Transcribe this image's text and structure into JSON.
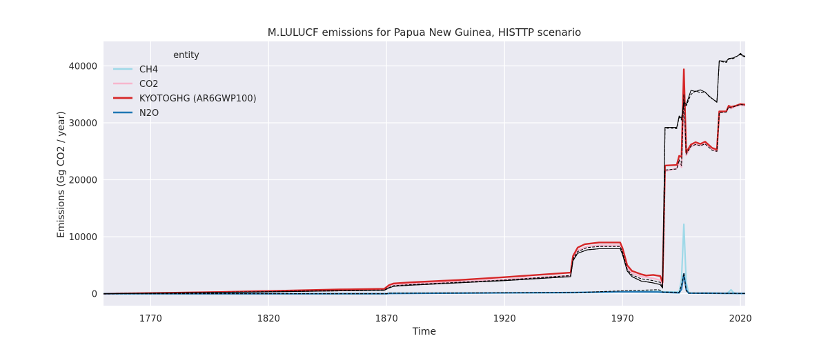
{
  "chart_data": {
    "type": "line",
    "title": "M.LULUCF emissions for Papua New Guinea, HISTTP scenario",
    "xlabel": "Time",
    "ylabel": "Emissions (Gg CO2 / year)",
    "xlim": [
      1750,
      2022
    ],
    "ylim": [
      -2100,
      44300
    ],
    "xticks": [
      1770,
      1820,
      1870,
      1920,
      1970,
      2020
    ],
    "yticks": [
      0,
      10000,
      20000,
      30000,
      40000
    ],
    "grid": true,
    "background": "#eaeaf2",
    "legend": {
      "title": "entity",
      "placement": "top-left"
    },
    "series": [
      {
        "name": "CH4",
        "color": "#9ed9e8",
        "width": 2.2,
        "points": [
          [
            1750,
            0
          ],
          [
            1870,
            0
          ],
          [
            1871,
            100
          ],
          [
            1900,
            120
          ],
          [
            1950,
            200
          ],
          [
            1985,
            450
          ],
          [
            1986,
            500
          ],
          [
            1987,
            350
          ],
          [
            1994,
            320
          ],
          [
            1995,
            2500
          ],
          [
            1996,
            12200
          ],
          [
            1997,
            2000
          ],
          [
            1998,
            150
          ],
          [
            2000,
            100
          ],
          [
            2010,
            100
          ],
          [
            2014,
            50
          ],
          [
            2015,
            300
          ],
          [
            2016,
            700
          ],
          [
            2017,
            200
          ],
          [
            2018,
            50
          ],
          [
            2022,
            50
          ]
        ]
      },
      {
        "name": "CO2",
        "color": "#f7b6cd",
        "width": 2.2,
        "points": [
          [
            1750,
            0
          ],
          [
            1800,
            300
          ],
          [
            1850,
            600
          ],
          [
            1869,
            750
          ],
          [
            1871,
            1300
          ],
          [
            1872,
            1600
          ],
          [
            1880,
            1750
          ],
          [
            1900,
            2100
          ],
          [
            1920,
            2500
          ],
          [
            1948,
            3200
          ],
          [
            1949,
            6200
          ],
          [
            1951,
            7600
          ],
          [
            1955,
            8300
          ],
          [
            1960,
            8500
          ],
          [
            1969,
            8500
          ],
          [
            1970,
            7600
          ],
          [
            1972,
            4600
          ],
          [
            1974,
            3600
          ],
          [
            1978,
            3000
          ],
          [
            1980,
            2900
          ],
          [
            1983,
            2700
          ],
          [
            1986,
            2400
          ],
          [
            1987,
            1500
          ],
          [
            1988,
            21500
          ],
          [
            1993,
            22000
          ],
          [
            1994,
            23000
          ],
          [
            1995,
            22200
          ],
          [
            1996,
            34000
          ],
          [
            1997,
            24300
          ],
          [
            1999,
            25800
          ],
          [
            2001,
            26200
          ],
          [
            2003,
            26000
          ],
          [
            2005,
            26300
          ],
          [
            2008,
            25300
          ],
          [
            2010,
            25000
          ],
          [
            2011,
            31800
          ],
          [
            2014,
            32000
          ],
          [
            2015,
            32700
          ],
          [
            2016,
            32500
          ],
          [
            2018,
            32900
          ],
          [
            2020,
            33100
          ],
          [
            2022,
            33000
          ]
        ]
      },
      {
        "name": "KYOTOGHG (AR6GWP100)",
        "color": "#d62728",
        "width": 2.4,
        "points": [
          [
            1750,
            0
          ],
          [
            1800,
            300
          ],
          [
            1850,
            750
          ],
          [
            1869,
            850
          ],
          [
            1871,
            1500
          ],
          [
            1873,
            1800
          ],
          [
            1880,
            2000
          ],
          [
            1900,
            2400
          ],
          [
            1920,
            2900
          ],
          [
            1948,
            3700
          ],
          [
            1949,
            6600
          ],
          [
            1951,
            8100
          ],
          [
            1954,
            8700
          ],
          [
            1960,
            9000
          ],
          [
            1969,
            9000
          ],
          [
            1970,
            8000
          ],
          [
            1972,
            5000
          ],
          [
            1974,
            4000
          ],
          [
            1978,
            3400
          ],
          [
            1980,
            3200
          ],
          [
            1983,
            3300
          ],
          [
            1986,
            3100
          ],
          [
            1987,
            2000
          ],
          [
            1988,
            22500
          ],
          [
            1993,
            22600
          ],
          [
            1994,
            24200
          ],
          [
            1995,
            24000
          ],
          [
            1996,
            39400
          ],
          [
            1997,
            24800
          ],
          [
            1999,
            26200
          ],
          [
            2001,
            26600
          ],
          [
            2003,
            26300
          ],
          [
            2005,
            26700
          ],
          [
            2008,
            25600
          ],
          [
            2010,
            25300
          ],
          [
            2011,
            32000
          ],
          [
            2014,
            32000
          ],
          [
            2015,
            33000
          ],
          [
            2016,
            32800
          ],
          [
            2018,
            33000
          ],
          [
            2020,
            33300
          ],
          [
            2022,
            33200
          ]
        ]
      },
      {
        "name": "N2O",
        "color": "#1f77b4",
        "width": 2.2,
        "points": [
          [
            1750,
            0
          ],
          [
            1870,
            0
          ],
          [
            1871,
            50
          ],
          [
            1900,
            100
          ],
          [
            1950,
            200
          ],
          [
            1970,
            350
          ],
          [
            1985,
            300
          ],
          [
            1987,
            250
          ],
          [
            1994,
            150
          ],
          [
            1995,
            800
          ],
          [
            1996,
            3500
          ],
          [
            1997,
            700
          ],
          [
            1998,
            100
          ],
          [
            2022,
            50
          ]
        ]
      },
      {
        "name": "",
        "color": "#000000",
        "width": 1.1,
        "dash": "4,2",
        "points": [
          [
            1750,
            0
          ],
          [
            1870,
            0
          ],
          [
            1871,
            100
          ],
          [
            1900,
            120
          ],
          [
            1950,
            200
          ],
          [
            1970,
            500
          ],
          [
            1985,
            700
          ],
          [
            1986,
            600
          ],
          [
            1987,
            300
          ],
          [
            1994,
            250
          ],
          [
            1995,
            1500
          ],
          [
            1996,
            3600
          ],
          [
            1997,
            500
          ],
          [
            1998,
            100
          ],
          [
            2022,
            50
          ]
        ]
      },
      {
        "name": "",
        "color": "#000000",
        "width": 1.1,
        "dash": "4,2",
        "points": [
          [
            1750,
            0
          ],
          [
            1800,
            250
          ],
          [
            1850,
            550
          ],
          [
            1869,
            650
          ],
          [
            1871,
            1100
          ],
          [
            1873,
            1400
          ],
          [
            1880,
            1600
          ],
          [
            1900,
            2000
          ],
          [
            1920,
            2400
          ],
          [
            1948,
            3200
          ],
          [
            1949,
            6100
          ],
          [
            1951,
            7400
          ],
          [
            1955,
            8100
          ],
          [
            1960,
            8300
          ],
          [
            1969,
            8300
          ],
          [
            1970,
            7300
          ],
          [
            1972,
            4300
          ],
          [
            1974,
            3300
          ],
          [
            1978,
            2600
          ],
          [
            1980,
            2500
          ],
          [
            1983,
            2300
          ],
          [
            1986,
            2000
          ],
          [
            1987,
            1200
          ],
          [
            1988,
            21700
          ],
          [
            1993,
            21900
          ],
          [
            1994,
            23500
          ],
          [
            1995,
            22500
          ],
          [
            1996,
            35000
          ],
          [
            1997,
            24500
          ],
          [
            1999,
            25900
          ],
          [
            2001,
            26200
          ],
          [
            2003,
            26000
          ],
          [
            2005,
            26300
          ],
          [
            2008,
            25200
          ],
          [
            2010,
            25000
          ],
          [
            2011,
            31800
          ],
          [
            2014,
            31900
          ],
          [
            2015,
            32800
          ],
          [
            2016,
            32600
          ],
          [
            2018,
            33000
          ],
          [
            2020,
            33200
          ],
          [
            2022,
            33100
          ]
        ]
      },
      {
        "name": "",
        "color": "#000000",
        "width": 1.1,
        "dash": "4,2",
        "points": [
          [
            1750,
            0
          ],
          [
            1800,
            200
          ],
          [
            1850,
            500
          ],
          [
            1869,
            600
          ],
          [
            1871,
            1000
          ],
          [
            1873,
            1300
          ],
          [
            1880,
            1500
          ],
          [
            1900,
            1900
          ],
          [
            1920,
            2300
          ],
          [
            1948,
            3000
          ],
          [
            1949,
            5800
          ],
          [
            1951,
            7100
          ],
          [
            1955,
            7700
          ],
          [
            1960,
            7900
          ],
          [
            1969,
            7900
          ],
          [
            1970,
            6900
          ],
          [
            1972,
            4000
          ],
          [
            1974,
            3000
          ],
          [
            1978,
            2200
          ],
          [
            1980,
            2100
          ],
          [
            1983,
            1900
          ],
          [
            1986,
            1600
          ],
          [
            1987,
            1000
          ],
          [
            1988,
            29000
          ],
          [
            1990,
            29100
          ],
          [
            1993,
            29000
          ],
          [
            1994,
            31000
          ],
          [
            1995,
            30500
          ],
          [
            1996,
            33500
          ],
          [
            1997,
            33000
          ],
          [
            1999,
            35000
          ],
          [
            2001,
            35600
          ],
          [
            2003,
            35300
          ],
          [
            2005,
            35400
          ],
          [
            2007,
            34500
          ],
          [
            2010,
            33700
          ],
          [
            2011,
            40800
          ],
          [
            2014,
            40600
          ],
          [
            2015,
            41200
          ],
          [
            2017,
            41300
          ],
          [
            2019,
            41800
          ],
          [
            2020,
            42000
          ],
          [
            2021,
            41700
          ],
          [
            2022,
            41600
          ]
        ]
      },
      {
        "name": "",
        "color": "#000000",
        "width": 1.1,
        "points": [
          [
            1750,
            0
          ],
          [
            1800,
            200
          ],
          [
            1850,
            500
          ],
          [
            1869,
            600
          ],
          [
            1871,
            1000
          ],
          [
            1873,
            1300
          ],
          [
            1880,
            1500
          ],
          [
            1900,
            1900
          ],
          [
            1920,
            2300
          ],
          [
            1948,
            3000
          ],
          [
            1949,
            5800
          ],
          [
            1951,
            7100
          ],
          [
            1955,
            7700
          ],
          [
            1960,
            7900
          ],
          [
            1969,
            7900
          ],
          [
            1970,
            6900
          ],
          [
            1972,
            4000
          ],
          [
            1974,
            3000
          ],
          [
            1978,
            2200
          ],
          [
            1980,
            2100
          ],
          [
            1983,
            1900
          ],
          [
            1986,
            1600
          ],
          [
            1987,
            1000
          ],
          [
            1988,
            29200
          ],
          [
            1990,
            29200
          ],
          [
            1993,
            29200
          ],
          [
            1994,
            31200
          ],
          [
            1995,
            30800
          ],
          [
            1996,
            33700
          ],
          [
            1997,
            33200
          ],
          [
            1999,
            35700
          ],
          [
            2001,
            35500
          ],
          [
            2003,
            35800
          ],
          [
            2005,
            35400
          ],
          [
            2007,
            34600
          ],
          [
            2010,
            33600
          ],
          [
            2011,
            40900
          ],
          [
            2014,
            40800
          ],
          [
            2015,
            41300
          ],
          [
            2017,
            41400
          ],
          [
            2019,
            41800
          ],
          [
            2020,
            42200
          ],
          [
            2021,
            41800
          ],
          [
            2022,
            41700
          ]
        ]
      }
    ]
  }
}
